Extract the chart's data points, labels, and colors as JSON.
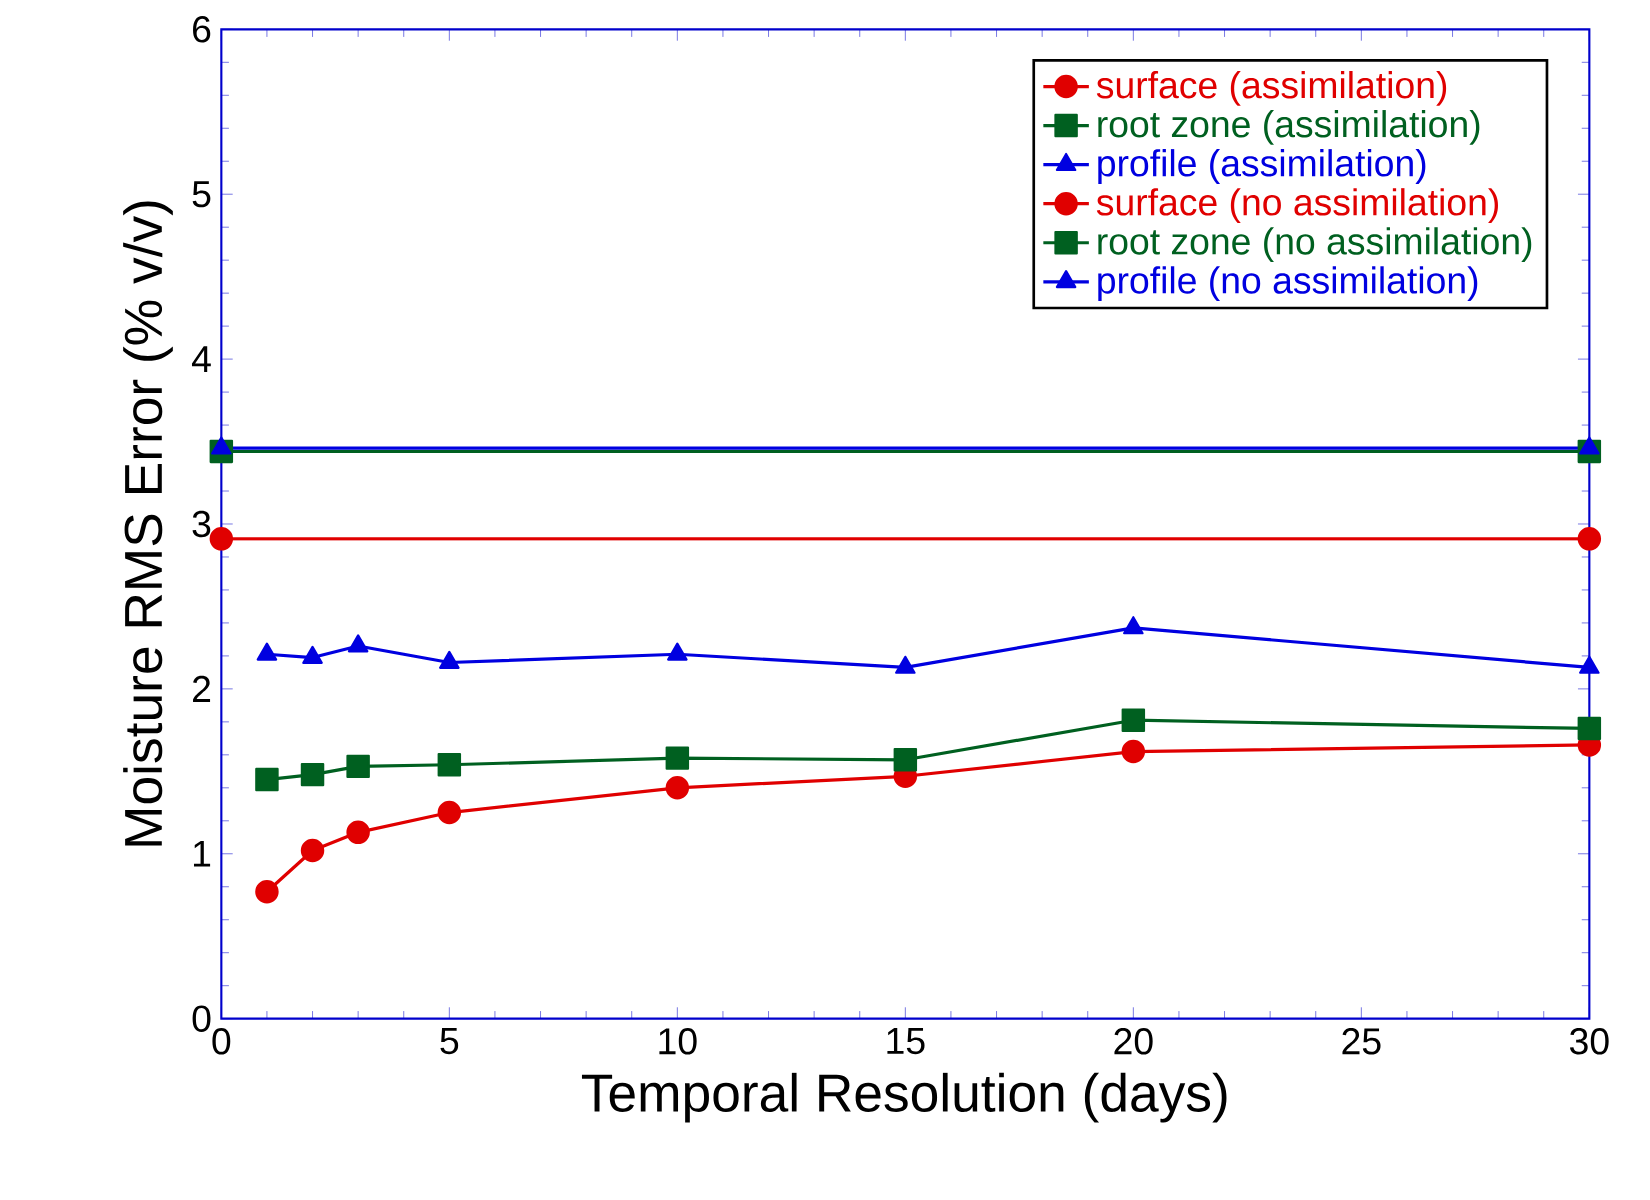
{
  "chart_data": {
    "type": "line",
    "xlabel": "Temporal Resolution (days)",
    "ylabel": "Moisture RMS Error (% v/v)",
    "xlim": [
      0,
      30
    ],
    "xticks": [
      0,
      5,
      10,
      15,
      20,
      25,
      30
    ],
    "ylim": [
      0,
      6
    ],
    "yticks": [
      0,
      1,
      2,
      3,
      4,
      5,
      6
    ],
    "grid": false,
    "legend": "top right",
    "series": [
      {
        "name": "surface (assimilation)",
        "color": "#e00000",
        "marker": "circle",
        "x": [
          1,
          2,
          3,
          5,
          10,
          15,
          20,
          30
        ],
        "values": [
          0.77,
          1.02,
          1.13,
          1.25,
          1.4,
          1.47,
          1.62,
          1.66
        ]
      },
      {
        "name": "root zone (assimilation)",
        "color": "#006020",
        "marker": "square",
        "x": [
          1,
          2,
          3,
          5,
          10,
          15,
          20,
          30
        ],
        "values": [
          1.45,
          1.48,
          1.53,
          1.54,
          1.58,
          1.57,
          1.81,
          1.76
        ]
      },
      {
        "name": "profile (assimilation)",
        "color": "#0000e0",
        "marker": "triangle",
        "x": [
          1,
          2,
          3,
          5,
          10,
          15,
          20,
          30
        ],
        "values": [
          2.21,
          2.19,
          2.26,
          2.16,
          2.21,
          2.13,
          2.37,
          2.13
        ]
      },
      {
        "name": "surface (no assimilation)",
        "color": "#e00000",
        "marker": "circle",
        "x": [
          0,
          30
        ],
        "values": [
          2.91,
          2.91
        ]
      },
      {
        "name": "root zone (no assimilation)",
        "color": "#006020",
        "marker": "square",
        "x": [
          0,
          30
        ],
        "values": [
          3.44,
          3.44
        ]
      },
      {
        "name": "profile (no assimilation)",
        "color": "#0000e0",
        "marker": "triangle",
        "x": [
          0,
          30
        ],
        "values": [
          3.46,
          3.46
        ]
      }
    ]
  }
}
